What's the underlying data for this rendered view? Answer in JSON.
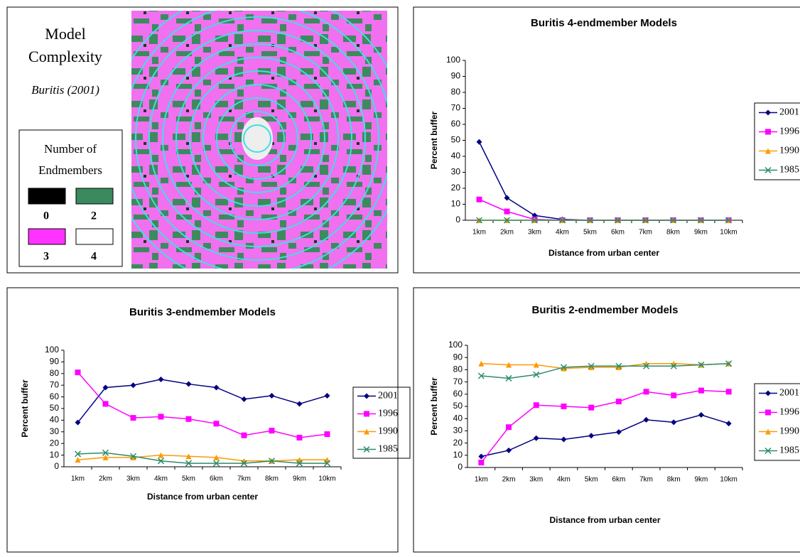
{
  "map_panel": {
    "title_lines": [
      "Model",
      "Complexity"
    ],
    "subtitle": "Buritis (2001)",
    "legend_title_lines": [
      "Number of",
      "Endmembers"
    ],
    "legend_items": [
      {
        "label": "0",
        "color": "#000000"
      },
      {
        "label": "2",
        "color": "#3a8a5e"
      },
      {
        "label": "3",
        "color": "#ff33ff"
      },
      {
        "label": "4",
        "color": "#ffffff"
      }
    ]
  },
  "chart_data": [
    {
      "type": "line",
      "title": "Buritis 4-endmember Models",
      "x_label": "Distance from urban center",
      "y_label": "Percent buffer",
      "categories": [
        "1km",
        "2km",
        "3km",
        "4km",
        "5km",
        "6km",
        "7km",
        "8km",
        "9km",
        "10km"
      ],
      "ylim": [
        0,
        100
      ],
      "yticks": [
        0,
        10,
        20,
        30,
        40,
        50,
        60,
        70,
        80,
        90,
        100
      ],
      "grid": false,
      "legend": "right",
      "series": [
        {
          "name": "2001",
          "color": "#000080",
          "marker": "diamond",
          "values": [
            49,
            14,
            3,
            0.5,
            0,
            0,
            0,
            0,
            0,
            0
          ]
        },
        {
          "name": "1996",
          "color": "#ff00ff",
          "marker": "square",
          "values": [
            13,
            5.5,
            0.5,
            0,
            0,
            0,
            0,
            0,
            0,
            0
          ]
        },
        {
          "name": "1990",
          "color": "#ff9900",
          "marker": "triangle",
          "values": [
            0,
            0,
            0,
            0,
            0,
            0,
            0,
            0,
            0,
            0
          ]
        },
        {
          "name": "1985",
          "color": "#2e8b6a",
          "marker": "x",
          "values": [
            0,
            0,
            0,
            0,
            0,
            0,
            0,
            0,
            0,
            0
          ]
        }
      ]
    },
    {
      "type": "line",
      "title": "Buritis 3-endmember Models",
      "x_label": "Distance from urban center",
      "y_label": "Percent buffer",
      "categories": [
        "1km",
        "2km",
        "3km",
        "4km",
        "5km",
        "6km",
        "7km",
        "8km",
        "9km",
        "10km"
      ],
      "ylim": [
        0,
        100
      ],
      "yticks": [
        0,
        10,
        20,
        30,
        40,
        50,
        60,
        70,
        80,
        90,
        100
      ],
      "grid": false,
      "legend": "right",
      "series": [
        {
          "name": "2001",
          "color": "#000080",
          "marker": "diamond",
          "values": [
            38,
            68,
            70,
            75,
            71,
            68,
            58,
            61,
            54,
            61
          ]
        },
        {
          "name": "1996",
          "color": "#ff00ff",
          "marker": "square",
          "values": [
            81,
            54,
            42,
            43,
            41,
            37,
            27,
            31,
            25,
            28
          ]
        },
        {
          "name": "1990",
          "color": "#ff9900",
          "marker": "triangle",
          "values": [
            6,
            8,
            8,
            10,
            9,
            8,
            5,
            5,
            6,
            6
          ]
        },
        {
          "name": "1985",
          "color": "#2e8b6a",
          "marker": "x",
          "values": [
            11,
            12,
            9,
            5,
            3,
            3,
            3,
            5,
            3,
            3
          ]
        }
      ]
    },
    {
      "type": "line",
      "title": "Buritis 2-endmember Models",
      "x_label": "Distance from urban center",
      "y_label": "Percent buffer",
      "categories": [
        "1km",
        "2km",
        "3km",
        "4km",
        "5km",
        "6km",
        "7km",
        "8km",
        "9km",
        "10km"
      ],
      "ylim": [
        0,
        100
      ],
      "yticks": [
        0,
        10,
        20,
        30,
        40,
        50,
        60,
        70,
        80,
        90,
        100
      ],
      "grid": false,
      "legend": "right",
      "series": [
        {
          "name": "2001",
          "color": "#000080",
          "marker": "diamond",
          "values": [
            9,
            14,
            24,
            23,
            26,
            29,
            39,
            37,
            43,
            36
          ]
        },
        {
          "name": "1996",
          "color": "#ff00ff",
          "marker": "square",
          "values": [
            4,
            33,
            51,
            50,
            49,
            54,
            62,
            59,
            63,
            62
          ]
        },
        {
          "name": "1990",
          "color": "#ff9900",
          "marker": "triangle",
          "values": [
            85,
            84,
            84,
            81,
            82,
            82,
            85,
            85,
            84,
            85
          ]
        },
        {
          "name": "1985",
          "color": "#2e8b6a",
          "marker": "x",
          "values": [
            75,
            73,
            76,
            82,
            83,
            83,
            83,
            83,
            84,
            85
          ]
        }
      ]
    }
  ]
}
